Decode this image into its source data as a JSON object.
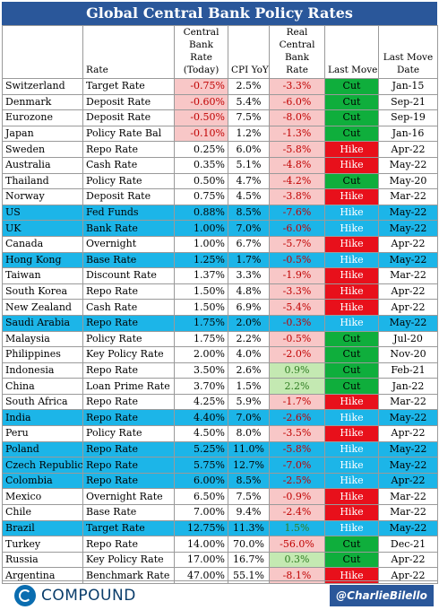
{
  "title": "Global Central Bank Policy Rates",
  "headers": {
    "country": "",
    "rate": "Rate",
    "bank_rate": "Central Bank Rate (Today)",
    "cpi": "CPI YoY",
    "real_rate": "Real Central Bank Rate",
    "last_move": "Last Move",
    "last_move_date": "Last Move Date"
  },
  "colors": {
    "header_blue": "#2a579a",
    "highlight_row": "#1cb5e8",
    "negative_fill": "#f8c7c7",
    "positive_fill": "#c4e9b2",
    "cut": "#0fae3c",
    "hike": "#e8101b"
  },
  "rows": [
    {
      "country": "Switzerland",
      "rate": "Target Rate",
      "bank_rate": "-0.75%",
      "cpi": "2.5%",
      "real": "-3.3%",
      "move": "Cut",
      "date": "Jan-15",
      "highlight": false
    },
    {
      "country": "Denmark",
      "rate": "Deposit Rate",
      "bank_rate": "-0.60%",
      "cpi": "5.4%",
      "real": "-6.0%",
      "move": "Cut",
      "date": "Sep-21",
      "highlight": false
    },
    {
      "country": "Eurozone",
      "rate": "Deposit Rate",
      "bank_rate": "-0.50%",
      "cpi": "7.5%",
      "real": "-8.0%",
      "move": "Cut",
      "date": "Sep-19",
      "highlight": false
    },
    {
      "country": "Japan",
      "rate": "Policy Rate Bal",
      "bank_rate": "-0.10%",
      "cpi": "1.2%",
      "real": "-1.3%",
      "move": "Cut",
      "date": "Jan-16",
      "highlight": false
    },
    {
      "country": "Sweden",
      "rate": "Repo Rate",
      "bank_rate": "0.25%",
      "cpi": "6.0%",
      "real": "-5.8%",
      "move": "Hike",
      "date": "Apr-22",
      "highlight": false
    },
    {
      "country": "Australia",
      "rate": "Cash Rate",
      "bank_rate": "0.35%",
      "cpi": "5.1%",
      "real": "-4.8%",
      "move": "Hike",
      "date": "May-22",
      "highlight": false
    },
    {
      "country": "Thailand",
      "rate": "Policy Rate",
      "bank_rate": "0.50%",
      "cpi": "4.7%",
      "real": "-4.2%",
      "move": "Cut",
      "date": "May-20",
      "highlight": false
    },
    {
      "country": "Norway",
      "rate": "Deposit Rate",
      "bank_rate": "0.75%",
      "cpi": "4.5%",
      "real": "-3.8%",
      "move": "Hike",
      "date": "Mar-22",
      "highlight": false
    },
    {
      "country": "US",
      "rate": "Fed Funds",
      "bank_rate": "0.88%",
      "cpi": "8.5%",
      "real": "-7.6%",
      "move": "Hike",
      "date": "May-22",
      "highlight": true
    },
    {
      "country": "UK",
      "rate": "Bank Rate",
      "bank_rate": "1.00%",
      "cpi": "7.0%",
      "real": "-6.0%",
      "move": "Hike",
      "date": "May-22",
      "highlight": true
    },
    {
      "country": "Canada",
      "rate": "Overnight",
      "bank_rate": "1.00%",
      "cpi": "6.7%",
      "real": "-5.7%",
      "move": "Hike",
      "date": "Apr-22",
      "highlight": false
    },
    {
      "country": "Hong Kong",
      "rate": "Base Rate",
      "bank_rate": "1.25%",
      "cpi": "1.7%",
      "real": "-0.5%",
      "move": "Hike",
      "date": "May-22",
      "highlight": true
    },
    {
      "country": "Taiwan",
      "rate": "Discount Rate",
      "bank_rate": "1.37%",
      "cpi": "3.3%",
      "real": "-1.9%",
      "move": "Hike",
      "date": "Mar-22",
      "highlight": false
    },
    {
      "country": "South Korea",
      "rate": "Repo Rate",
      "bank_rate": "1.50%",
      "cpi": "4.8%",
      "real": "-3.3%",
      "move": "Hike",
      "date": "Apr-22",
      "highlight": false
    },
    {
      "country": "New Zealand",
      "rate": "Cash Rate",
      "bank_rate": "1.50%",
      "cpi": "6.9%",
      "real": "-5.4%",
      "move": "Hike",
      "date": "Apr-22",
      "highlight": false
    },
    {
      "country": "Saudi Arabia",
      "rate": "Repo Rate",
      "bank_rate": "1.75%",
      "cpi": "2.0%",
      "real": "-0.3%",
      "move": "Hike",
      "date": "May-22",
      "highlight": true
    },
    {
      "country": "Malaysia",
      "rate": "Policy Rate",
      "bank_rate": "1.75%",
      "cpi": "2.2%",
      "real": "-0.5%",
      "move": "Cut",
      "date": "Jul-20",
      "highlight": false
    },
    {
      "country": "Philippines",
      "rate": "Key Policy Rate",
      "bank_rate": "2.00%",
      "cpi": "4.0%",
      "real": "-2.0%",
      "move": "Cut",
      "date": "Nov-20",
      "highlight": false
    },
    {
      "country": "Indonesia",
      "rate": "Repo Rate",
      "bank_rate": "3.50%",
      "cpi": "2.6%",
      "real": "0.9%",
      "move": "Cut",
      "date": "Feb-21",
      "highlight": false
    },
    {
      "country": "China",
      "rate": "Loan Prime Rate",
      "bank_rate": "3.70%",
      "cpi": "1.5%",
      "real": "2.2%",
      "move": "Cut",
      "date": "Jan-22",
      "highlight": false
    },
    {
      "country": "South Africa",
      "rate": "Repo Rate",
      "bank_rate": "4.25%",
      "cpi": "5.9%",
      "real": "-1.7%",
      "move": "Hike",
      "date": "Mar-22",
      "highlight": false
    },
    {
      "country": "India",
      "rate": "Repo Rate",
      "bank_rate": "4.40%",
      "cpi": "7.0%",
      "real": "-2.6%",
      "move": "Hike",
      "date": "May-22",
      "highlight": true
    },
    {
      "country": "Peru",
      "rate": "Policy Rate",
      "bank_rate": "4.50%",
      "cpi": "8.0%",
      "real": "-3.5%",
      "move": "Hike",
      "date": "Apr-22",
      "highlight": false
    },
    {
      "country": "Poland",
      "rate": "Repo Rate",
      "bank_rate": "5.25%",
      "cpi": "11.0%",
      "real": "-5.8%",
      "move": "Hike",
      "date": "May-22",
      "highlight": true
    },
    {
      "country": "Czech Republic",
      "rate": "Repo Rate",
      "bank_rate": "5.75%",
      "cpi": "12.7%",
      "real": "-7.0%",
      "move": "Hike",
      "date": "May-22",
      "highlight": true
    },
    {
      "country": "Colombia",
      "rate": "Repo Rate",
      "bank_rate": "6.00%",
      "cpi": "8.5%",
      "real": "-2.5%",
      "move": "Hike",
      "date": "Apr-22",
      "highlight": true
    },
    {
      "country": "Mexico",
      "rate": "Overnight Rate",
      "bank_rate": "6.50%",
      "cpi": "7.5%",
      "real": "-0.9%",
      "move": "Hike",
      "date": "Mar-22",
      "highlight": false
    },
    {
      "country": "Chile",
      "rate": "Base Rate",
      "bank_rate": "7.00%",
      "cpi": "9.4%",
      "real": "-2.4%",
      "move": "Hike",
      "date": "Mar-22",
      "highlight": false
    },
    {
      "country": "Brazil",
      "rate": "Target Rate",
      "bank_rate": "12.75%",
      "cpi": "11.3%",
      "real": "1.5%",
      "move": "Hike",
      "date": "May-22",
      "highlight": true
    },
    {
      "country": "Turkey",
      "rate": "Repo Rate",
      "bank_rate": "14.00%",
      "cpi": "70.0%",
      "real": "-56.0%",
      "move": "Cut",
      "date": "Dec-21",
      "highlight": false
    },
    {
      "country": "Russia",
      "rate": "Key Policy Rate",
      "bank_rate": "17.00%",
      "cpi": "16.7%",
      "real": "0.3%",
      "move": "Cut",
      "date": "Apr-22",
      "highlight": false
    },
    {
      "country": "Argentina",
      "rate": "Benchmark Rate",
      "bank_rate": "47.00%",
      "cpi": "55.1%",
      "real": "-8.1%",
      "move": "Hike",
      "date": "Apr-22",
      "highlight": false
    }
  ],
  "footer": {
    "logo_text": "COMPOUND",
    "logo_icon": "compound-logo-icon",
    "handle": "@CharlieBilello"
  }
}
